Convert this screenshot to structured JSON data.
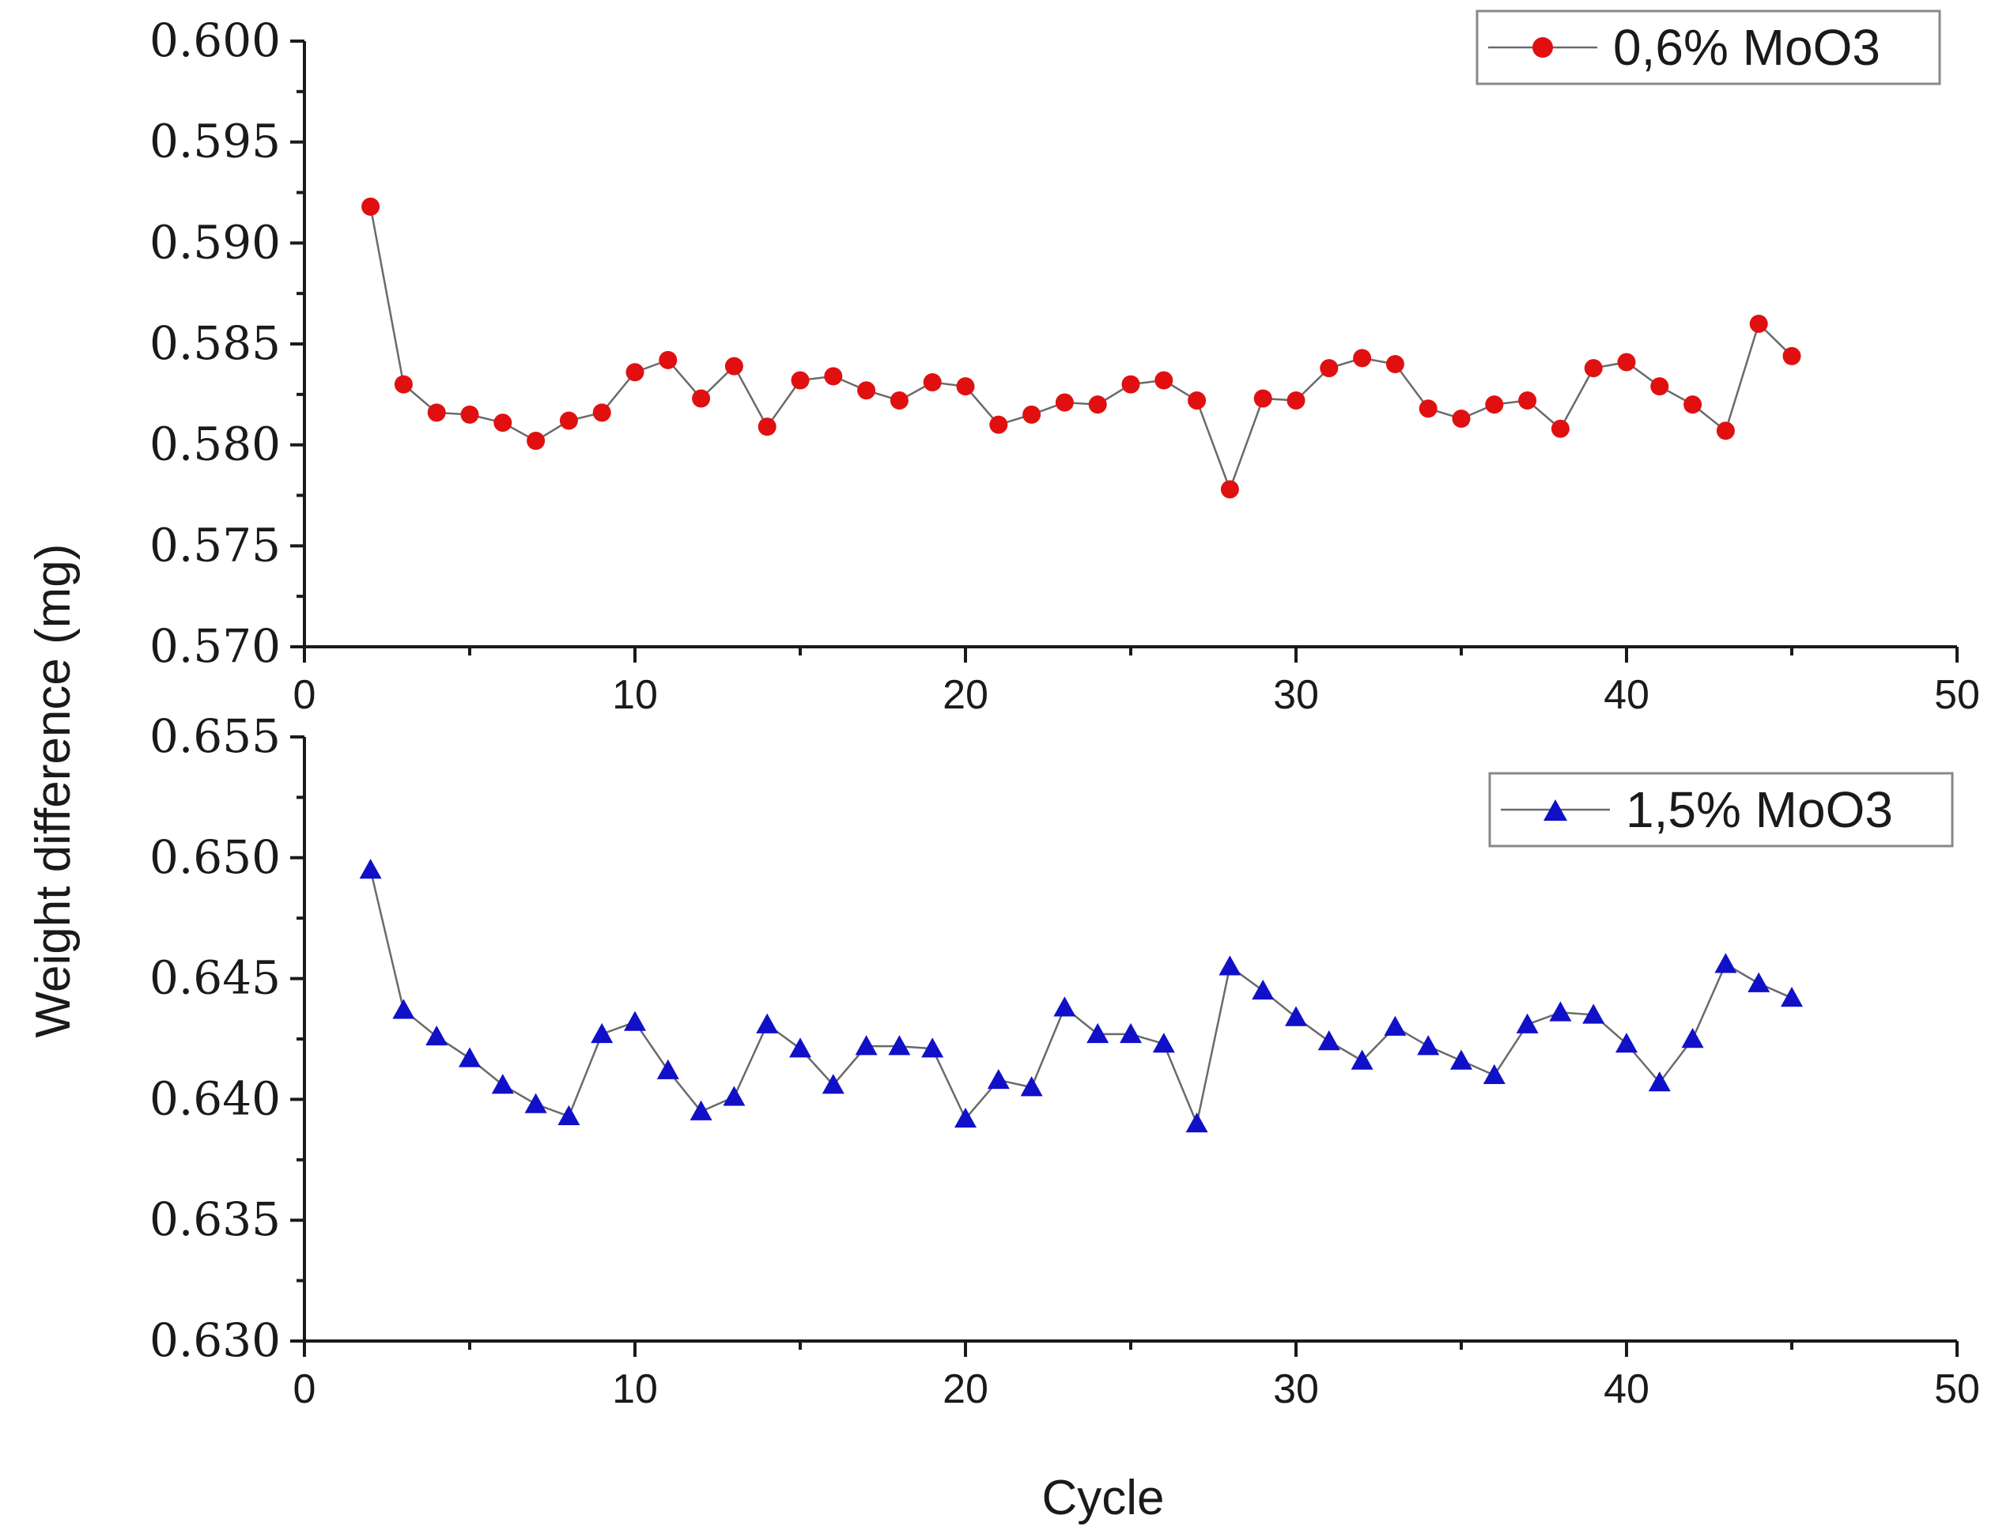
{
  "y_axis_title": "Weight difference (mg)",
  "x_axis_title": "Cycle",
  "chart_data": [
    {
      "type": "line",
      "title": "",
      "xlabel": "Cycle",
      "ylabel": "Weight difference (mg)",
      "xlim": [
        0,
        50
      ],
      "ylim": [
        0.57,
        0.6
      ],
      "x_ticks": [
        0,
        10,
        20,
        30,
        40,
        50
      ],
      "y_ticks": [
        0.57,
        0.575,
        0.58,
        0.585,
        0.59,
        0.595,
        0.6
      ],
      "y_tick_labels": [
        "0.570",
        "0.575",
        "0.580",
        "0.585",
        "0.590",
        "0.595",
        "0.600"
      ],
      "legend_position": "top-right",
      "series": [
        {
          "name": "0,6% MoO3",
          "marker": "circle",
          "color": "#e01010",
          "x": [
            2,
            3,
            4,
            5,
            6,
            7,
            8,
            9,
            10,
            11,
            12,
            13,
            14,
            15,
            16,
            17,
            18,
            19,
            20,
            21,
            22,
            23,
            24,
            25,
            26,
            27,
            28,
            29,
            30,
            31,
            32,
            33,
            34,
            35,
            36,
            37,
            38,
            39,
            40,
            41,
            42,
            43,
            44,
            45
          ],
          "values": [
            0.5918,
            0.583,
            0.5816,
            0.5815,
            0.5811,
            0.5802,
            0.5812,
            0.5816,
            0.5836,
            0.5842,
            0.5823,
            0.5839,
            0.5809,
            0.5832,
            0.5834,
            0.5827,
            0.5822,
            0.5831,
            0.5829,
            0.581,
            0.5815,
            0.5821,
            0.582,
            0.583,
            0.5832,
            0.5822,
            0.5778,
            0.5823,
            0.5822,
            0.5838,
            0.5843,
            0.584,
            0.5818,
            0.5813,
            0.582,
            0.5822,
            0.5808,
            0.5838,
            0.5841,
            0.5829,
            0.582,
            0.5807,
            0.586,
            0.5844
          ]
        }
      ]
    },
    {
      "type": "line",
      "title": "",
      "xlabel": "Cycle",
      "ylabel": "Weight difference (mg)",
      "xlim": [
        0,
        50
      ],
      "ylim": [
        0.63,
        0.655
      ],
      "x_ticks": [
        0,
        10,
        20,
        30,
        40,
        50
      ],
      "y_ticks": [
        0.63,
        0.635,
        0.64,
        0.645,
        0.65,
        0.655
      ],
      "y_tick_labels": [
        "0.630",
        "0.635",
        "0.640",
        "0.645",
        "0.650",
        "0.655"
      ],
      "legend_position": "top-right",
      "series": [
        {
          "name": "1,5% MoO3",
          "marker": "triangle",
          "color": "#1010c8",
          "x": [
            2,
            3,
            4,
            5,
            6,
            7,
            8,
            9,
            10,
            11,
            12,
            13,
            14,
            15,
            16,
            17,
            18,
            19,
            20,
            21,
            22,
            23,
            24,
            25,
            26,
            27,
            28,
            29,
            30,
            31,
            32,
            33,
            34,
            35,
            36,
            37,
            38,
            39,
            40,
            41,
            42,
            43,
            44,
            45
          ],
          "values": [
            0.6495,
            0.6437,
            0.6426,
            0.6417,
            0.6406,
            0.6398,
            0.6393,
            0.6427,
            0.6432,
            0.6412,
            0.6395,
            0.6401,
            0.6431,
            0.6421,
            0.6406,
            0.6422,
            0.6422,
            0.6421,
            0.6392,
            0.6408,
            0.6405,
            0.6438,
            0.6427,
            0.6427,
            0.6423,
            0.639,
            0.6455,
            0.6445,
            0.6434,
            0.6424,
            0.6416,
            0.643,
            0.6422,
            0.6416,
            0.641,
            0.6431,
            0.6436,
            0.6435,
            0.6423,
            0.6407,
            0.6425,
            0.6456,
            0.6448,
            0.6442
          ]
        }
      ]
    }
  ]
}
